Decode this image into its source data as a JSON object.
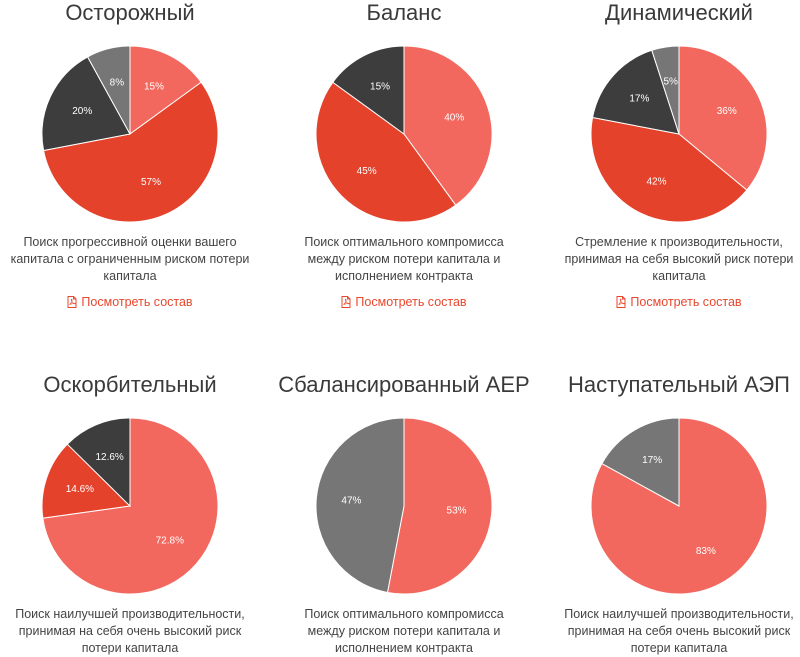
{
  "colors": {
    "salmon": "#f3685e",
    "red": "#e5422b",
    "dark": "#3d3d3d",
    "gray": "#767676",
    "link": "#e8472d"
  },
  "chart_data": [
    {
      "type": "pie",
      "title": "Осторожный",
      "slices": [
        {
          "label": "15%",
          "value": 15,
          "color": "#f3685e"
        },
        {
          "label": "57%",
          "value": 57,
          "color": "#e5422b"
        },
        {
          "label": "20%",
          "value": 20,
          "color": "#3d3d3d"
        },
        {
          "label": "8%",
          "value": 8,
          "color": "#767676"
        }
      ],
      "description": "Поиск прогрессивной оценки вашего капитала с ограниченным риском потери капитала",
      "link": "Посмотреть состав"
    },
    {
      "type": "pie",
      "title": "Баланс",
      "slices": [
        {
          "label": "40%",
          "value": 40,
          "color": "#f3685e"
        },
        {
          "label": "45%",
          "value": 45,
          "color": "#e5422b"
        },
        {
          "label": "15%",
          "value": 15,
          "color": "#3d3d3d"
        }
      ],
      "description": "Поиск оптимального компромисса между риском потери капитала и исполнением контракта",
      "link": "Посмотреть состав"
    },
    {
      "type": "pie",
      "title": "Динамический",
      "slices": [
        {
          "label": "36%",
          "value": 36,
          "color": "#f3685e"
        },
        {
          "label": "42%",
          "value": 42,
          "color": "#e5422b"
        },
        {
          "label": "17%",
          "value": 17,
          "color": "#3d3d3d"
        },
        {
          "label": "5%",
          "value": 5,
          "color": "#767676"
        }
      ],
      "description": "Стремление к производительности, принимая на себя высокий риск потери капитала",
      "link": "Посмотреть состав"
    },
    {
      "type": "pie",
      "title": "Оскорбительный",
      "slices": [
        {
          "label": "72.8%",
          "value": 72.8,
          "color": "#f3685e"
        },
        {
          "label": "14.6%",
          "value": 14.6,
          "color": "#e5422b"
        },
        {
          "label": "12.6%",
          "value": 12.6,
          "color": "#3d3d3d"
        }
      ],
      "description": "Поиск наилучшей производительности, принимая на себя очень высокий риск потери капитала",
      "link": ""
    },
    {
      "type": "pie",
      "title": "Сбалансированный АЕР",
      "slices": [
        {
          "label": "53%",
          "value": 53,
          "color": "#f3685e"
        },
        {
          "label": "47%",
          "value": 47,
          "color": "#767676"
        }
      ],
      "description": "Поиск оптимального компромисса между риском потери капитала и исполнением контракта",
      "link": ""
    },
    {
      "type": "pie",
      "title": "Наступательный АЭП",
      "slices": [
        {
          "label": "83%",
          "value": 83,
          "color": "#f3685e"
        },
        {
          "label": "17%",
          "value": 17,
          "color": "#767676"
        }
      ],
      "description": "Поиск наилучшей производительности, принимая на себя очень высокий риск потери капитала",
      "link": ""
    }
  ]
}
